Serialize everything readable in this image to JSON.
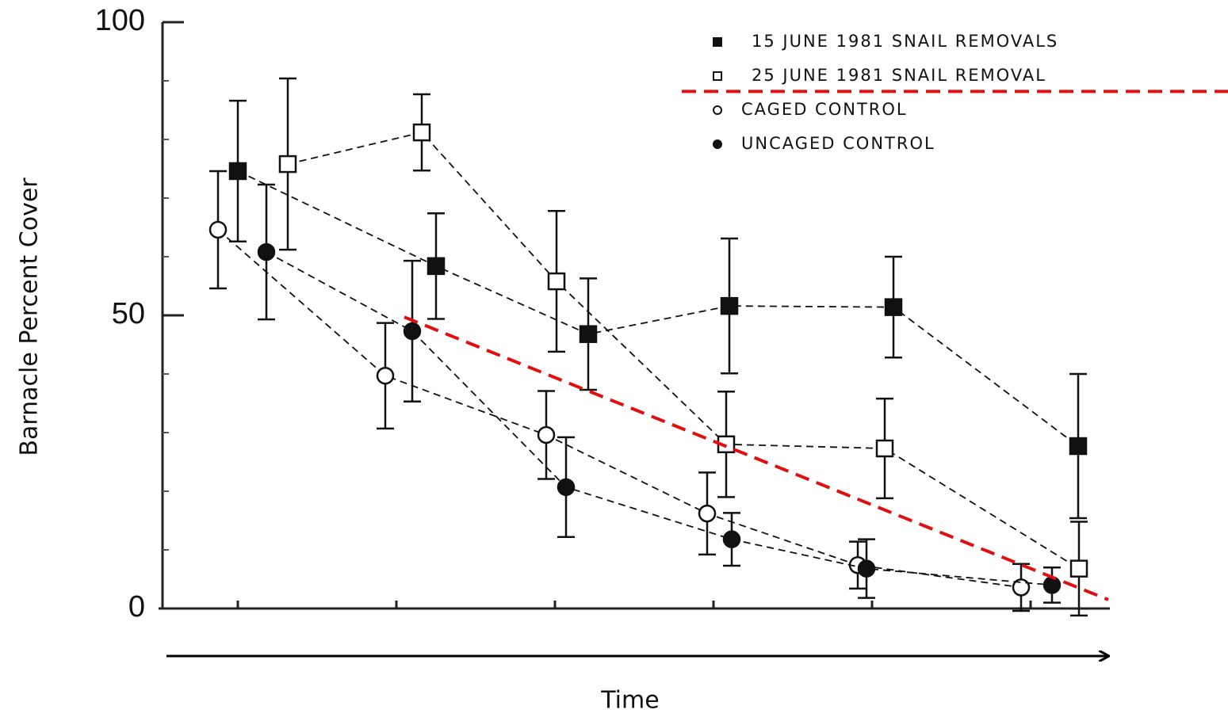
{
  "chart_data": {
    "type": "line",
    "x_label": "Time",
    "y_label": "Barnacle Percent Cover",
    "xlim": [
      0.5,
      6.5
    ],
    "xticks": [
      1,
      2,
      3,
      4,
      5,
      6
    ],
    "ylim": [
      0,
      100
    ],
    "yticks": [
      0,
      50,
      100
    ],
    "yminor": [
      10,
      20,
      30,
      40,
      60,
      70,
      80,
      90
    ],
    "legend": "upper right",
    "series": [
      {
        "name": "15 JUNE 1981 SNAIL REMOVALS",
        "color": "#111111",
        "marker": "square",
        "filled": true,
        "x": [
          1.0,
          2.25,
          3.21,
          4.1,
          5.135,
          6.3
        ],
        "values": [
          74.6,
          58.4,
          46.8,
          51.6,
          51.4,
          27.7
        ],
        "errors": [
          12,
          9,
          9.5,
          11.5,
          8.6,
          12.3
        ]
      },
      {
        "name": "25 JUNE 1981 SNAIL REMOVAL",
        "color": "#111111",
        "marker": "square",
        "filled": false,
        "x": [
          1.315,
          2.16,
          3.01,
          4.08,
          5.08,
          6.305
        ],
        "values": [
          75.8,
          81.2,
          55.8,
          28,
          27.3,
          6.8
        ],
        "errors": [
          14.6,
          6.5,
          12,
          9,
          8.5,
          8
        ]
      },
      {
        "name": "CAGED CONTROL",
        "color": "#111111",
        "marker": "circle",
        "filled": false,
        "x": [
          0.875,
          1.93,
          2.945,
          3.96,
          4.91,
          5.94
        ],
        "values": [
          64.6,
          39.7,
          29.6,
          16.2,
          7.4,
          3.6
        ],
        "errors": [
          10,
          9,
          7.5,
          7,
          4,
          4
        ]
      },
      {
        "name": "UNCAGED CONTROL",
        "color": "#111111",
        "marker": "circle",
        "filled": true,
        "x": [
          1.18,
          2.1,
          3.07,
          4.115,
          4.965,
          6.135
        ],
        "values": [
          60.8,
          47.3,
          20.7,
          11.8,
          6.8,
          4
        ],
        "errors": [
          11.5,
          12,
          8.5,
          4.5,
          5,
          3
        ]
      }
    ],
    "reference_lines": [
      {
        "color": "#e01010",
        "x": [
          3.8,
          7.245
        ],
        "y": [
          88.2,
          88.2
        ]
      },
      {
        "color": "#e01010",
        "x": [
          2.05,
          6.49
        ],
        "y": [
          49.7,
          1.5
        ]
      }
    ]
  }
}
